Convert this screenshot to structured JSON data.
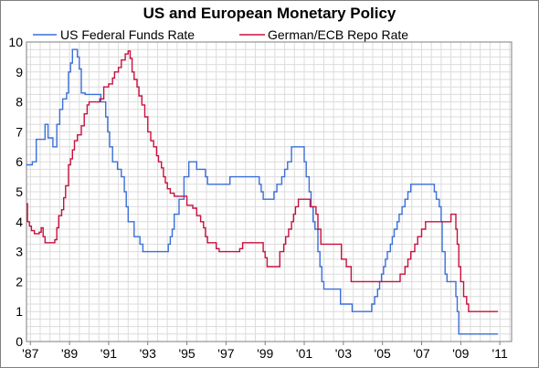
{
  "chart_data": {
    "type": "line",
    "title": "US and European Monetary Policy",
    "xlabel": "",
    "ylabel": "",
    "xlim": [
      1986.8,
      2011.6
    ],
    "ylim": [
      0,
      10
    ],
    "yticks": [
      0,
      1,
      2,
      3,
      4,
      5,
      6,
      7,
      8,
      9,
      10
    ],
    "xticks": [
      {
        "x": 1987,
        "label": "'87"
      },
      {
        "x": 1989,
        "label": "'89"
      },
      {
        "x": 1991,
        "label": "'91"
      },
      {
        "x": 1993,
        "label": "'93"
      },
      {
        "x": 1995,
        "label": "'95"
      },
      {
        "x": 1997,
        "label": "'97"
      },
      {
        "x": 1999,
        "label": "'99"
      },
      {
        "x": 2001,
        "label": "'01"
      },
      {
        "x": 2003,
        "label": "'03"
      },
      {
        "x": 2005,
        "label": "'05"
      },
      {
        "x": 2007,
        "label": "'07"
      },
      {
        "x": 2009,
        "label": "'09"
      },
      {
        "x": 2011,
        "label": "'11"
      }
    ],
    "grid": true,
    "legend": "top",
    "series": [
      {
        "name": "US Federal Funds Rate",
        "color": "#3a6fd8",
        "step": true,
        "points": [
          [
            1986.8,
            5.9
          ],
          [
            1987.1,
            6.0
          ],
          [
            1987.3,
            6.75
          ],
          [
            1987.75,
            7.25
          ],
          [
            1987.9,
            6.8
          ],
          [
            1988.15,
            6.5
          ],
          [
            1988.35,
            7.25
          ],
          [
            1988.5,
            7.75
          ],
          [
            1988.65,
            8.1
          ],
          [
            1988.85,
            8.3
          ],
          [
            1988.95,
            9.0
          ],
          [
            1989.05,
            9.3
          ],
          [
            1989.15,
            9.75
          ],
          [
            1989.4,
            9.5
          ],
          [
            1989.5,
            9.1
          ],
          [
            1989.6,
            8.3
          ],
          [
            1989.8,
            8.25
          ],
          [
            1990.6,
            8.0
          ],
          [
            1990.85,
            7.5
          ],
          [
            1990.95,
            7.0
          ],
          [
            1991.05,
            6.5
          ],
          [
            1991.2,
            6.0
          ],
          [
            1991.45,
            5.75
          ],
          [
            1991.65,
            5.5
          ],
          [
            1991.8,
            5.0
          ],
          [
            1991.9,
            4.5
          ],
          [
            1992.0,
            4.0
          ],
          [
            1992.3,
            3.5
          ],
          [
            1992.6,
            3.25
          ],
          [
            1992.75,
            3.0
          ],
          [
            1994.05,
            3.25
          ],
          [
            1994.15,
            3.5
          ],
          [
            1994.25,
            3.75
          ],
          [
            1994.35,
            4.25
          ],
          [
            1994.6,
            4.75
          ],
          [
            1994.85,
            5.5
          ],
          [
            1995.1,
            6.0
          ],
          [
            1995.5,
            5.75
          ],
          [
            1995.95,
            5.5
          ],
          [
            1996.05,
            5.25
          ],
          [
            1997.2,
            5.5
          ],
          [
            1998.7,
            5.25
          ],
          [
            1998.8,
            5.0
          ],
          [
            1998.9,
            4.75
          ],
          [
            1999.45,
            5.0
          ],
          [
            1999.6,
            5.25
          ],
          [
            1999.85,
            5.5
          ],
          [
            2000.0,
            5.75
          ],
          [
            2000.15,
            6.0
          ],
          [
            2000.35,
            6.5
          ],
          [
            2001.0,
            6.0
          ],
          [
            2001.1,
            5.5
          ],
          [
            2001.25,
            5.0
          ],
          [
            2001.35,
            4.5
          ],
          [
            2001.45,
            4.0
          ],
          [
            2001.55,
            3.75
          ],
          [
            2001.7,
            3.0
          ],
          [
            2001.8,
            2.5
          ],
          [
            2001.9,
            2.0
          ],
          [
            2002.0,
            1.75
          ],
          [
            2002.85,
            1.25
          ],
          [
            2003.45,
            1.0
          ],
          [
            2004.45,
            1.25
          ],
          [
            2004.6,
            1.5
          ],
          [
            2004.75,
            1.75
          ],
          [
            2004.85,
            2.0
          ],
          [
            2004.95,
            2.25
          ],
          [
            2005.05,
            2.5
          ],
          [
            2005.15,
            2.75
          ],
          [
            2005.25,
            3.0
          ],
          [
            2005.4,
            3.25
          ],
          [
            2005.5,
            3.5
          ],
          [
            2005.6,
            3.75
          ],
          [
            2005.75,
            4.0
          ],
          [
            2005.85,
            4.25
          ],
          [
            2006.0,
            4.5
          ],
          [
            2006.15,
            4.75
          ],
          [
            2006.3,
            5.0
          ],
          [
            2006.45,
            5.25
          ],
          [
            2007.65,
            5.0
          ],
          [
            2007.75,
            4.75
          ],
          [
            2007.9,
            4.5
          ],
          [
            2008.0,
            4.0
          ],
          [
            2008.05,
            3.0
          ],
          [
            2008.2,
            2.25
          ],
          [
            2008.3,
            2.0
          ],
          [
            2008.75,
            1.5
          ],
          [
            2008.82,
            1.0
          ],
          [
            2008.9,
            0.25
          ],
          [
            2010.9,
            0.25
          ]
        ]
      },
      {
        "name": "German/ECB Repo Rate",
        "color": "#c8103f",
        "step": true,
        "points": [
          [
            1986.8,
            4.6
          ],
          [
            1986.85,
            4.0
          ],
          [
            1986.95,
            3.85
          ],
          [
            1987.05,
            3.7
          ],
          [
            1987.2,
            3.6
          ],
          [
            1987.45,
            3.65
          ],
          [
            1987.55,
            3.8
          ],
          [
            1987.65,
            3.5
          ],
          [
            1987.75,
            3.3
          ],
          [
            1988.25,
            3.4
          ],
          [
            1988.35,
            3.8
          ],
          [
            1988.45,
            4.2
          ],
          [
            1988.6,
            4.4
          ],
          [
            1988.7,
            4.8
          ],
          [
            1988.8,
            5.2
          ],
          [
            1988.95,
            5.9
          ],
          [
            1989.05,
            6.1
          ],
          [
            1989.15,
            6.4
          ],
          [
            1989.25,
            6.7
          ],
          [
            1989.4,
            6.9
          ],
          [
            1989.6,
            7.2
          ],
          [
            1989.75,
            7.6
          ],
          [
            1989.9,
            7.9
          ],
          [
            1990.0,
            8.0
          ],
          [
            1990.3,
            8.0
          ],
          [
            1990.55,
            8.1
          ],
          [
            1990.75,
            8.5
          ],
          [
            1991.0,
            8.6
          ],
          [
            1991.2,
            8.8
          ],
          [
            1991.3,
            9.0
          ],
          [
            1991.5,
            9.15
          ],
          [
            1991.65,
            9.4
          ],
          [
            1991.85,
            9.6
          ],
          [
            1992.0,
            9.7
          ],
          [
            1992.1,
            9.45
          ],
          [
            1992.2,
            9.0
          ],
          [
            1992.3,
            8.75
          ],
          [
            1992.45,
            8.5
          ],
          [
            1992.55,
            8.2
          ],
          [
            1992.7,
            7.9
          ],
          [
            1992.85,
            7.5
          ],
          [
            1993.0,
            7.0
          ],
          [
            1993.15,
            6.7
          ],
          [
            1993.3,
            6.5
          ],
          [
            1993.45,
            6.2
          ],
          [
            1993.55,
            6.0
          ],
          [
            1993.7,
            5.8
          ],
          [
            1993.8,
            5.5
          ],
          [
            1993.9,
            5.3
          ],
          [
            1994.0,
            5.1
          ],
          [
            1994.15,
            4.95
          ],
          [
            1994.35,
            4.85
          ],
          [
            1994.75,
            4.85
          ],
          [
            1995.0,
            4.55
          ],
          [
            1995.3,
            4.45
          ],
          [
            1995.5,
            4.2
          ],
          [
            1995.7,
            4.0
          ],
          [
            1995.85,
            3.8
          ],
          [
            1995.95,
            3.5
          ],
          [
            1996.05,
            3.3
          ],
          [
            1996.5,
            3.1
          ],
          [
            1996.65,
            3.0
          ],
          [
            1997.7,
            3.1
          ],
          [
            1997.85,
            3.3
          ],
          [
            1998.9,
            3.0
          ],
          [
            1999.0,
            2.8
          ],
          [
            1999.1,
            2.5
          ],
          [
            1999.55,
            2.5
          ],
          [
            1999.75,
            3.0
          ],
          [
            1999.95,
            3.25
          ],
          [
            2000.05,
            3.5
          ],
          [
            2000.2,
            3.75
          ],
          [
            2000.35,
            4.0
          ],
          [
            2000.45,
            4.25
          ],
          [
            2000.55,
            4.5
          ],
          [
            2000.7,
            4.75
          ],
          [
            2001.3,
            4.5
          ],
          [
            2001.6,
            4.25
          ],
          [
            2001.7,
            3.75
          ],
          [
            2001.85,
            3.25
          ],
          [
            2002.9,
            2.75
          ],
          [
            2003.15,
            2.5
          ],
          [
            2003.4,
            2.0
          ],
          [
            2005.9,
            2.25
          ],
          [
            2006.15,
            2.5
          ],
          [
            2006.3,
            2.75
          ],
          [
            2006.45,
            3.0
          ],
          [
            2006.65,
            3.25
          ],
          [
            2006.8,
            3.5
          ],
          [
            2007.0,
            3.75
          ],
          [
            2007.2,
            4.0
          ],
          [
            2008.5,
            4.25
          ],
          [
            2008.75,
            3.75
          ],
          [
            2008.82,
            3.25
          ],
          [
            2008.9,
            2.5
          ],
          [
            2009.0,
            2.0
          ],
          [
            2009.15,
            1.5
          ],
          [
            2009.3,
            1.25
          ],
          [
            2009.4,
            1.0
          ],
          [
            2010.9,
            1.0
          ]
        ]
      }
    ]
  }
}
